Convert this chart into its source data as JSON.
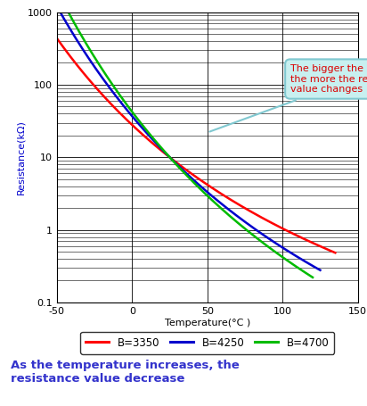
{
  "xlabel": "Temperature(°C )",
  "ylabel": "Resistance(kΩ)",
  "xlim": [
    -50,
    150
  ],
  "ylim_log": [
    0.1,
    1000
  ],
  "xticks": [
    -50,
    0,
    50,
    100,
    150
  ],
  "B_values": [
    3350,
    4250,
    4700
  ],
  "R0": 10,
  "T0": 25,
  "line_colors": [
    "#ff0000",
    "#0000cc",
    "#00bb00"
  ],
  "line_labels": [
    "B=3350",
    "B=4250",
    "B=4700"
  ],
  "annotation_text": "The bigger the B-value is,\nthe more the resistance\nvalue changes",
  "annotation_color": "#dd0000",
  "annotation_box_color": "#c8f0f0",
  "annotation_edge_color": "#80c8d0",
  "footer_text": "As the temperature increases, the\nresistance value decrease",
  "footer_color": "#3333cc",
  "grid_color": "#000000",
  "background_color": "#ffffff",
  "legend_border_color": "#000000",
  "ylabel_color": "#0000cc"
}
